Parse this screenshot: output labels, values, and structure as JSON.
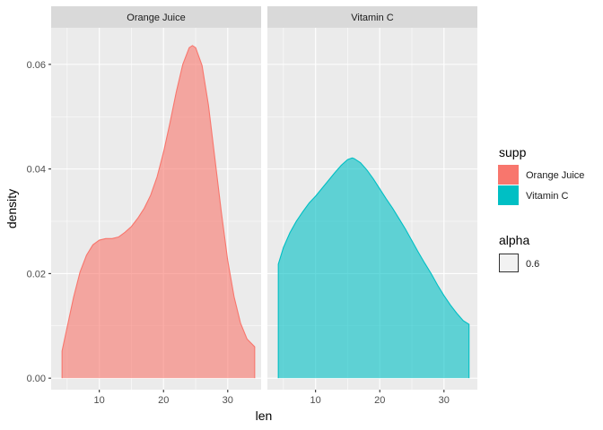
{
  "chart_data": {
    "type": "area",
    "xlabel": "len",
    "ylabel": "density",
    "x_ticks": [
      10,
      20,
      30
    ],
    "y_ticks": [
      0.0,
      0.02,
      0.04,
      0.06
    ],
    "y_tick_labels": [
      "0.00",
      "0.02",
      "0.04",
      "0.06"
    ],
    "xlim": [
      2.5,
      35.2
    ],
    "ylim": [
      -0.0022,
      0.067
    ],
    "grid": true,
    "legend_position": "right",
    "facets": [
      {
        "label": "Orange Juice",
        "color": "#F8766D",
        "x": [
          4.2,
          5,
          6,
          7,
          8,
          9,
          10,
          11,
          12,
          13,
          14,
          15,
          16,
          17,
          18,
          19,
          20,
          21,
          22,
          23,
          24,
          24.5,
          25,
          26,
          27,
          28,
          29,
          30,
          31,
          32,
          33,
          34.2
        ],
        "density": [
          0.0052,
          0.0098,
          0.0155,
          0.0203,
          0.0235,
          0.0255,
          0.0264,
          0.0267,
          0.0267,
          0.027,
          0.0279,
          0.029,
          0.0306,
          0.0325,
          0.035,
          0.0385,
          0.0432,
          0.0488,
          0.0548,
          0.06,
          0.0632,
          0.0636,
          0.0632,
          0.0598,
          0.0522,
          0.042,
          0.0318,
          0.0225,
          0.0155,
          0.0105,
          0.0075,
          0.006
        ]
      },
      {
        "label": "Vitamin C",
        "color": "#00BFC4",
        "x": [
          4.2,
          5,
          6,
          7,
          8,
          9,
          10,
          11,
          12,
          13,
          14,
          15,
          15.7,
          16,
          17,
          18,
          19,
          20,
          21,
          22,
          23,
          24,
          25,
          26,
          27,
          28,
          29,
          30,
          31,
          32,
          33,
          33.9
        ],
        "density": [
          0.0218,
          0.025,
          0.0278,
          0.03,
          0.0318,
          0.0335,
          0.0348,
          0.0363,
          0.0378,
          0.0393,
          0.0407,
          0.0418,
          0.0421,
          0.042,
          0.0412,
          0.0398,
          0.0381,
          0.0362,
          0.0343,
          0.0325,
          0.0305,
          0.0285,
          0.0263,
          0.0241,
          0.022,
          0.02,
          0.0178,
          0.0158,
          0.014,
          0.0124,
          0.011,
          0.0103
        ]
      }
    ],
    "legend": [
      {
        "title": "supp",
        "items": [
          {
            "label": "Orange Juice",
            "color": "#F8766D"
          },
          {
            "label": "Vitamin C",
            "color": "#00BFC4"
          }
        ]
      },
      {
        "title": "alpha",
        "items": [
          {
            "label": "0.6",
            "color": "#F2F2F2"
          }
        ]
      }
    ]
  }
}
